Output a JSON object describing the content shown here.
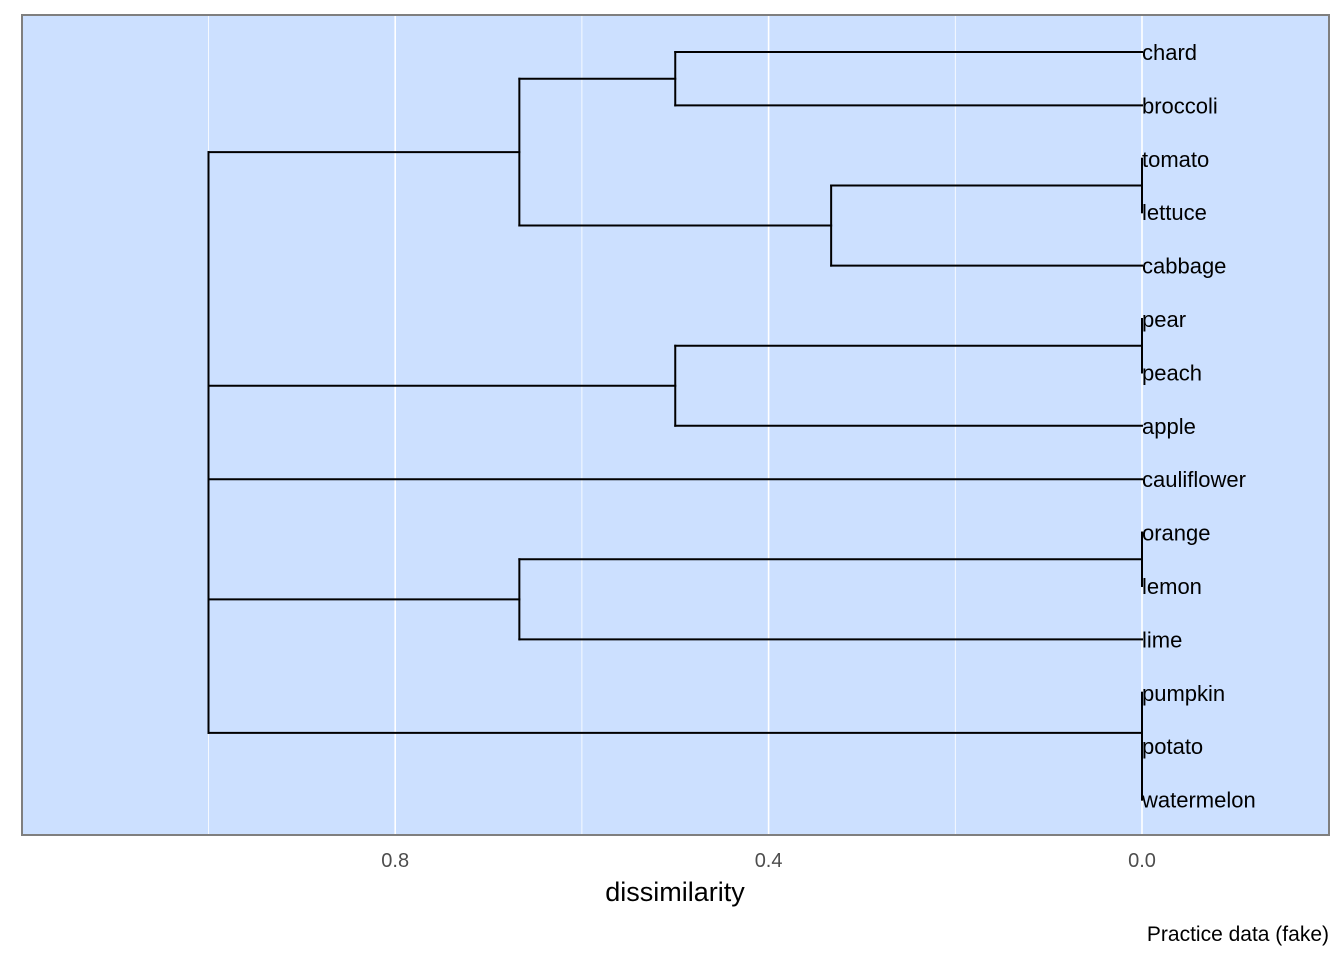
{
  "chart_data": {
    "type": "dendrogram",
    "orientation": "horizontal",
    "xlabel": "dissimilarity",
    "caption": "Practice data (fake)",
    "x_reversed": true,
    "xlim": [
      1.2,
      -0.2
    ],
    "x_ticks": [
      {
        "value": 0.8,
        "label": "0.8"
      },
      {
        "value": 0.4,
        "label": "0.4"
      },
      {
        "value": 0.0,
        "label": "0.0"
      }
    ],
    "x_minor_grid": [
      1.0,
      0.6,
      0.2
    ],
    "grid": true,
    "leaves": [
      "chard",
      "broccoli",
      "tomato",
      "lettuce",
      "cabbage",
      "pear",
      "peach",
      "apple",
      "cauliflower",
      "orange",
      "lemon",
      "lime",
      "pumpkin",
      "potato",
      "watermelon"
    ],
    "merges": [
      {
        "id": "m1",
        "height": 0.0,
        "children": [
          "tomato",
          "lettuce"
        ]
      },
      {
        "id": "m2",
        "height": 0.0,
        "children": [
          "pear",
          "peach"
        ]
      },
      {
        "id": "m3",
        "height": 0.0,
        "children": [
          "orange",
          "lemon"
        ]
      },
      {
        "id": "m4",
        "height": 0.0,
        "children": [
          "potato",
          "watermelon"
        ]
      },
      {
        "id": "m5",
        "height": 0.0,
        "children": [
          "pumpkin",
          "m4"
        ]
      },
      {
        "id": "m6",
        "height": 0.333,
        "children": [
          "m1",
          "cabbage"
        ]
      },
      {
        "id": "m7",
        "height": 0.5,
        "children": [
          "chard",
          "broccoli"
        ]
      },
      {
        "id": "m8",
        "height": 0.5,
        "children": [
          "m2",
          "apple"
        ]
      },
      {
        "id": "m9",
        "height": 0.667,
        "children": [
          "m7",
          "m6"
        ]
      },
      {
        "id": "m10",
        "height": 0.667,
        "children": [
          "m3",
          "lime"
        ]
      },
      {
        "id": "m11",
        "height": 1.0,
        "children": [
          "m9",
          "m8",
          "cauliflower",
          "m10",
          "m5"
        ]
      }
    ],
    "colors": {
      "panel_background": "#cce0ff",
      "panel_border": "#7f7f7f",
      "grid": "#ffffff",
      "branches": "#000000"
    }
  }
}
